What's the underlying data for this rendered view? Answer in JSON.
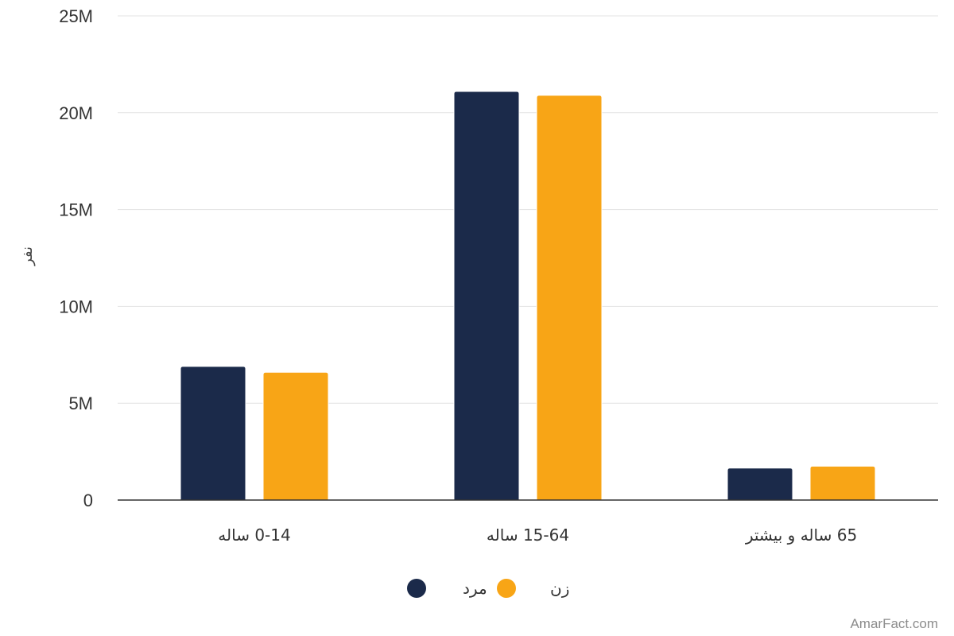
{
  "chart_data": {
    "type": "bar",
    "title": "",
    "xlabel": "",
    "ylabel": "نفر",
    "categories": [
      "0-14 ساله",
      "15-64 ساله",
      "65 ساله و بیشتر"
    ],
    "series": [
      {
        "name": "مرد",
        "color": "#1b2a4a",
        "values": [
          6.9,
          21.1,
          1.65
        ]
      },
      {
        "name": "زن",
        "color": "#f8a516",
        "values": [
          6.6,
          20.9,
          1.75
        ]
      }
    ],
    "ylim": [
      0,
      25
    ],
    "yticks": [
      0,
      5,
      10,
      15,
      20,
      25
    ],
    "ytick_labels": [
      "0",
      "5M",
      "10M",
      "15M",
      "20M",
      "25M"
    ],
    "grid": true,
    "legend_position": "bottom-center"
  },
  "watermark": "AmarFact.com"
}
